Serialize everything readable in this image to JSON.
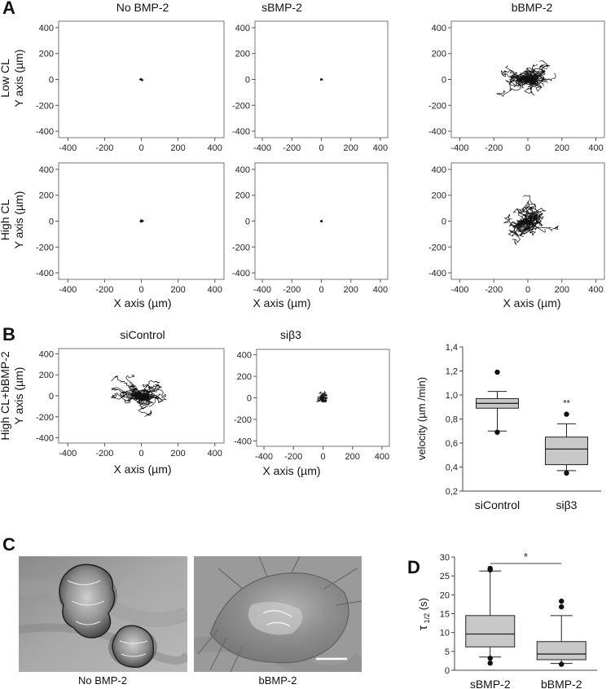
{
  "panel_labels": {
    "a": "A",
    "b": "B",
    "c": "C",
    "d": "D"
  },
  "section_a": {
    "col_titles": [
      "No BMP-2",
      "sBMP-2",
      "bBMP-2"
    ],
    "row_labels": [
      {
        "line1": "Low CL",
        "line2": "Y axis (µm)"
      },
      {
        "line1": "High CL",
        "line2": "Y axis (µm)"
      }
    ],
    "x_axis_label": "X axis (µm)"
  },
  "section_b": {
    "col_titles": [
      "siControl",
      "siβ3"
    ],
    "row_label": {
      "line1": "High CL+bBMP-2",
      "line2": "Y axis (µm)"
    },
    "x_axis_label": "X axis (µm)"
  },
  "section_c": {
    "image_labels": [
      "No BMP-2",
      "bBMP-2"
    ]
  },
  "track_axis": {
    "xticks": [
      "-400",
      "-200",
      "0",
      "200",
      "400"
    ],
    "yticks": [
      "400",
      "200",
      "0",
      "-200",
      "-400"
    ]
  },
  "trajectory_plots": [
    {
      "panel": "A",
      "row": "Low CL",
      "condition": "No BMP-2",
      "spread": "small"
    },
    {
      "panel": "A",
      "row": "Low CL",
      "condition": "sBMP-2",
      "spread": "small"
    },
    {
      "panel": "A",
      "row": "Low CL",
      "condition": "bBMP-2",
      "spread": "large"
    },
    {
      "panel": "A",
      "row": "High CL",
      "condition": "No BMP-2",
      "spread": "small"
    },
    {
      "panel": "A",
      "row": "High CL",
      "condition": "sBMP-2",
      "spread": "small"
    },
    {
      "panel": "A",
      "row": "High CL",
      "condition": "bBMP-2",
      "spread": "large"
    },
    {
      "panel": "B",
      "row": "High CL+bBMP-2",
      "condition": "siControl",
      "spread": "large"
    },
    {
      "panel": "B",
      "row": "High CL+bBMP-2",
      "condition": "siβ3",
      "spread": "medium"
    }
  ],
  "chart_data": [
    {
      "type": "box",
      "panel": "B",
      "ylabel": "velocity (µm /min)",
      "ylim": [
        0.2,
        1.4
      ],
      "yticks": [
        "0,2",
        "0,4",
        "0,6",
        "0,8",
        "1,0",
        "1,2",
        "1,4"
      ],
      "categories": [
        "siControl",
        "siβ3"
      ],
      "boxes": [
        {
          "category": "siControl",
          "whisker_low": 0.7,
          "q1": 0.89,
          "median": 0.93,
          "q3": 0.97,
          "whisker_high": 1.03,
          "outliers": [
            1.19,
            0.69
          ],
          "annotation": ""
        },
        {
          "category": "siβ3",
          "whisker_low": 0.37,
          "q1": 0.42,
          "median": 0.55,
          "q3": 0.65,
          "whisker_high": 0.76,
          "outliers": [
            0.84,
            0.35
          ],
          "annotation": "**"
        }
      ]
    },
    {
      "type": "box",
      "panel": "D",
      "ylabel": "τ 1/2 (s)",
      "ylabel_main": "τ",
      "ylabel_sub": "1/2",
      "ylabel_unit": "(s)",
      "ylim": [
        0,
        30
      ],
      "yticks": [
        "0",
        "5",
        "10",
        "15",
        "20",
        "25",
        "30"
      ],
      "categories": [
        "sBMP-2",
        "bBMP-2"
      ],
      "boxes": [
        {
          "category": "sBMP-2",
          "whisker_low": 3.5,
          "q1": 6.2,
          "median": 9.6,
          "q3": 14.5,
          "whisker_high": 26.3,
          "outliers": [
            27.0,
            26.6,
            3.2,
            1.9
          ],
          "annotation": ""
        },
        {
          "category": "bBMP-2",
          "whisker_low": 1.8,
          "q1": 2.8,
          "median": 4.3,
          "q3": 7.6,
          "whisker_high": 14.5,
          "outliers": [
            18.3,
            16.8,
            1.6
          ],
          "annotation": ""
        }
      ],
      "significance": "*"
    }
  ]
}
